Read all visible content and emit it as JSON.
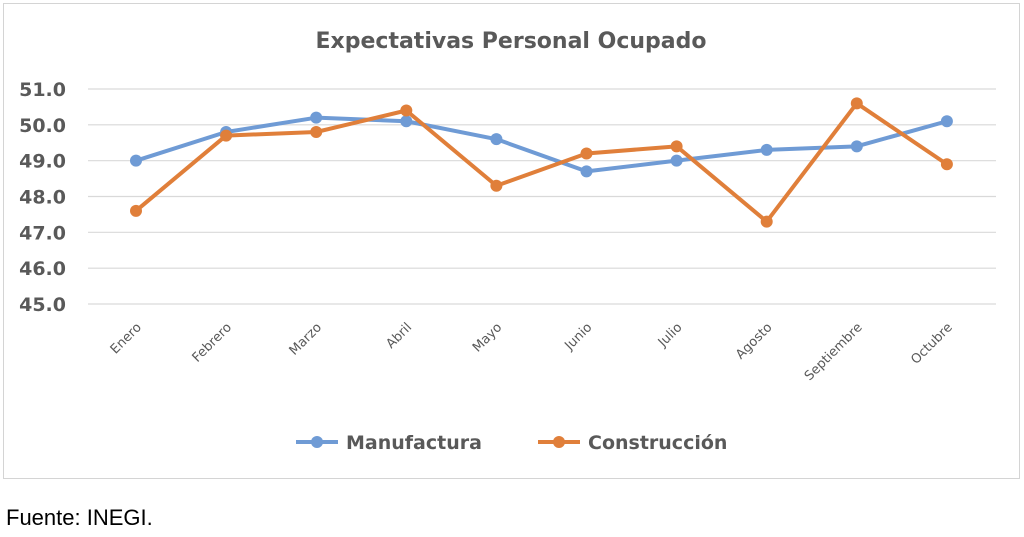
{
  "chart_data": {
    "type": "line",
    "title": "Expectativas Personal Ocupado",
    "categories": [
      "Enero",
      "Febrero",
      "Marzo",
      "Abril",
      "Mayo",
      "Junio",
      "Julio",
      "Agosto",
      "Septiembre",
      "Octubre"
    ],
    "series": [
      {
        "name": "Manufactura",
        "color": "#6f9bd5",
        "values": [
          49.0,
          49.8,
          50.2,
          50.1,
          49.6,
          48.7,
          49.0,
          49.3,
          49.4,
          50.1
        ]
      },
      {
        "name": "Construcción",
        "color": "#e07f3a",
        "values": [
          47.6,
          49.7,
          49.8,
          50.4,
          48.3,
          49.2,
          49.4,
          47.3,
          50.6,
          48.9
        ]
      }
    ],
    "ylim": [
      45.0,
      51.0
    ],
    "yticks": [
      "45.0",
      "46.0",
      "47.0",
      "48.0",
      "49.0",
      "50.0",
      "51.0"
    ],
    "grid": true,
    "legend": "bottom-center",
    "xlabel": "",
    "ylabel": ""
  },
  "source_note": "Fuente: INEGI."
}
